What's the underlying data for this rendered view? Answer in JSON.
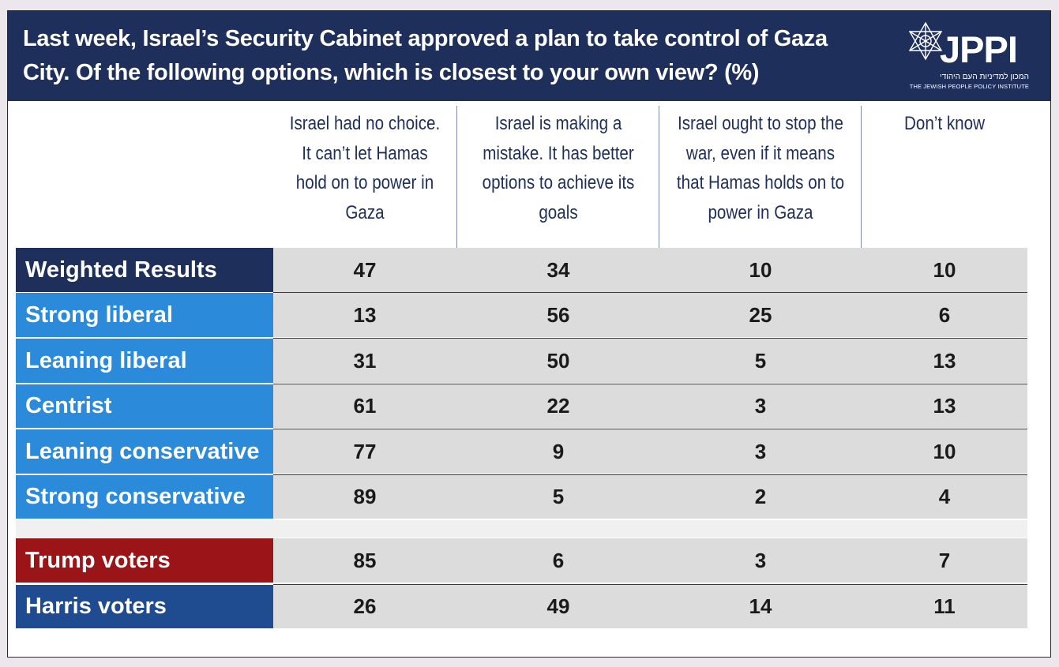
{
  "header": {
    "title_line1": "Last week, Israel’s Security Cabinet approved a plan to take control of Gaza",
    "title_line2": "City. Of the following options, which is closest to your own view? (%)",
    "logo": {
      "wordmark": "JPPI",
      "hebrew": "המכון למדיניות העם היהודי",
      "english": "THE JEWISH PEOPLE POLICY INSTITUTE",
      "icon": "star-of-david-icon"
    }
  },
  "colors": {
    "header_bg": "#1d2f5a",
    "weighted": "#1d2f5a",
    "ideology": "#2b8ad9",
    "trump": "#9b1418",
    "harris": "#1f4b91",
    "cell_bg": "#dcdcdc"
  },
  "chart_data": {
    "type": "table",
    "columns": [
      "Israel had no choice. It can’t let Hamas hold on to power in Gaza",
      "Israel is making a mistake. It has better options to achieve its goals",
      "Israel ought to stop the war, even if it means that Hamas holds on to power in Gaza",
      "Don’t know"
    ],
    "column_lines": [
      [
        "Israel had no choice.",
        "It can’t let Hamas",
        "hold on to power in",
        "Gaza"
      ],
      [
        "Israel is making a",
        "mistake. It has better",
        "options to achieve its",
        "goals"
      ],
      [
        "Israel ought to stop the",
        "war, even if it means",
        "that Hamas holds on to",
        "power in Gaza"
      ],
      [
        "Don’t know"
      ]
    ],
    "rows": [
      {
        "label": "Weighted Results",
        "group": "weighted",
        "values": [
          47,
          34,
          10,
          10
        ]
      },
      {
        "label": "Strong liberal",
        "group": "ideology",
        "values": [
          13,
          56,
          25,
          6
        ]
      },
      {
        "label": "Leaning liberal",
        "group": "ideology",
        "values": [
          31,
          50,
          5,
          13
        ]
      },
      {
        "label": "Centrist",
        "group": "ideology",
        "values": [
          61,
          22,
          3,
          13
        ]
      },
      {
        "label": "Leaning conservative",
        "group": "ideology",
        "values": [
          77,
          9,
          3,
          10
        ]
      },
      {
        "label": "Strong conservative",
        "group": "ideology",
        "values": [
          89,
          5,
          2,
          4
        ]
      },
      {
        "label": "Trump voters",
        "group": "trump",
        "values": [
          85,
          6,
          3,
          7
        ]
      },
      {
        "label": "Harris voters",
        "group": "harris",
        "values": [
          26,
          49,
          14,
          11
        ]
      }
    ]
  }
}
